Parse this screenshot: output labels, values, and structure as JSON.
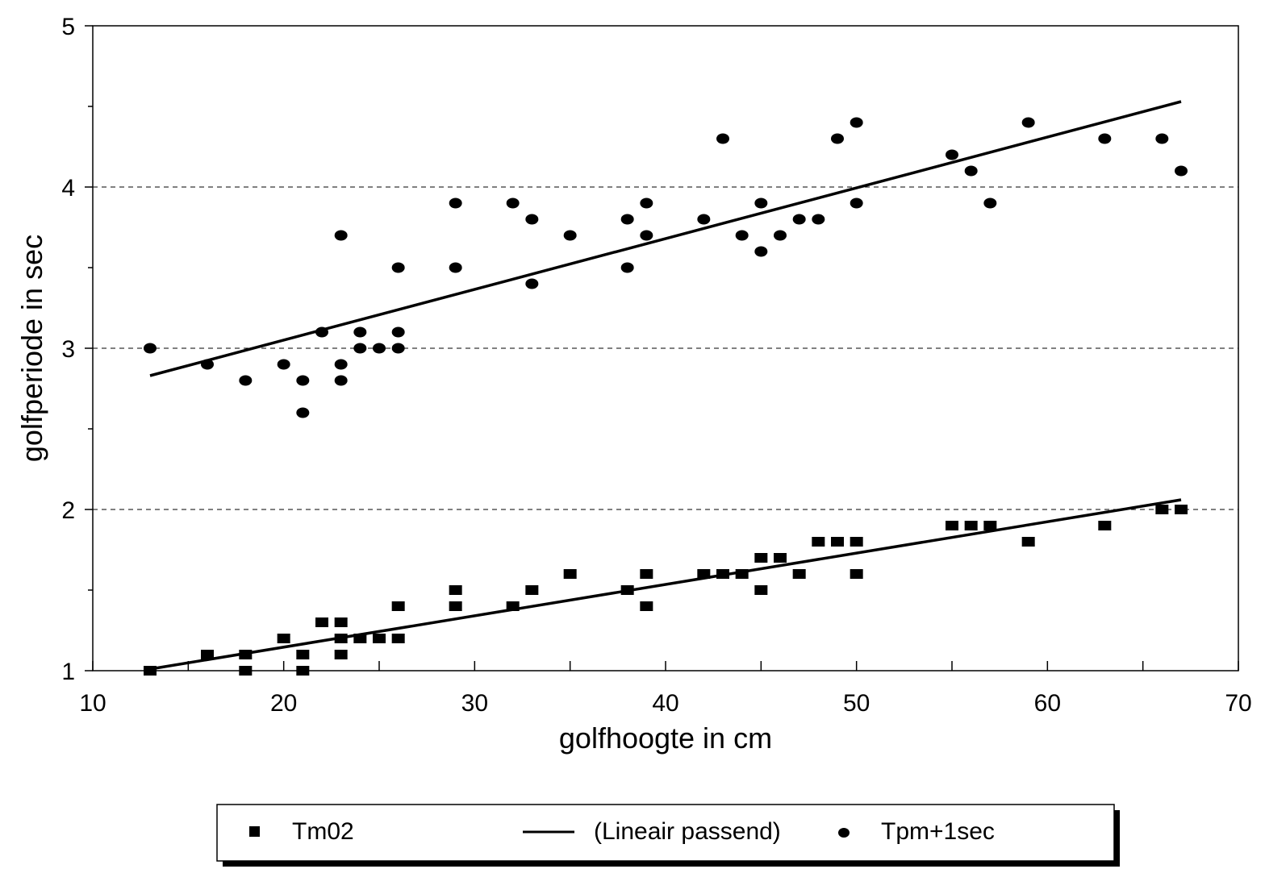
{
  "chart_data": {
    "type": "scatter",
    "title": "",
    "xlabel": "golfhoogte in cm",
    "ylabel": "golfperiode in sec",
    "xlim": [
      10,
      70
    ],
    "ylim": [
      1,
      5
    ],
    "x_ticks": [
      10,
      20,
      30,
      40,
      50,
      60,
      70
    ],
    "y_ticks": [
      1,
      2,
      3,
      4,
      5
    ],
    "grid": "horizontal dashed",
    "legend_position": "bottom",
    "series": [
      {
        "name": "Tm02",
        "marker": "square",
        "color": "#000000",
        "points": [
          [
            13,
            1.0
          ],
          [
            16,
            1.1
          ],
          [
            18,
            1.1
          ],
          [
            18,
            1.0
          ],
          [
            20,
            1.2
          ],
          [
            21,
            1.1
          ],
          [
            21,
            1.0
          ],
          [
            22,
            1.3
          ],
          [
            23,
            1.3
          ],
          [
            23,
            1.2
          ],
          [
            23,
            1.1
          ],
          [
            24,
            1.2
          ],
          [
            25,
            1.2
          ],
          [
            26,
            1.4
          ],
          [
            26,
            1.2
          ],
          [
            29,
            1.5
          ],
          [
            29,
            1.4
          ],
          [
            32,
            1.4
          ],
          [
            33,
            1.5
          ],
          [
            35,
            1.6
          ],
          [
            38,
            1.5
          ],
          [
            39,
            1.6
          ],
          [
            39,
            1.4
          ],
          [
            42,
            1.6
          ],
          [
            43,
            1.6
          ],
          [
            44,
            1.6
          ],
          [
            45,
            1.7
          ],
          [
            45,
            1.5
          ],
          [
            46,
            1.7
          ],
          [
            47,
            1.6
          ],
          [
            48,
            1.8
          ],
          [
            49,
            1.8
          ],
          [
            50,
            1.8
          ],
          [
            50,
            1.6
          ],
          [
            55,
            1.9
          ],
          [
            56,
            1.9
          ],
          [
            57,
            1.9
          ],
          [
            59,
            1.8
          ],
          [
            63,
            1.9
          ],
          [
            66,
            2.0
          ],
          [
            67,
            2.0
          ]
        ]
      },
      {
        "name": "Tpm+1sec",
        "marker": "circle",
        "color": "#000000",
        "points": [
          [
            13,
            3.0
          ],
          [
            16,
            2.9
          ],
          [
            18,
            2.8
          ],
          [
            20,
            2.9
          ],
          [
            21,
            2.8
          ],
          [
            21,
            2.6
          ],
          [
            22,
            3.1
          ],
          [
            23,
            3.7
          ],
          [
            23,
            2.9
          ],
          [
            23,
            2.8
          ],
          [
            24,
            3.1
          ],
          [
            24,
            3.0
          ],
          [
            25,
            3.0
          ],
          [
            26,
            3.5
          ],
          [
            26,
            3.1
          ],
          [
            26,
            3.0
          ],
          [
            29,
            3.9
          ],
          [
            29,
            3.5
          ],
          [
            32,
            3.9
          ],
          [
            33,
            3.8
          ],
          [
            33,
            3.4
          ],
          [
            35,
            3.7
          ],
          [
            38,
            3.8
          ],
          [
            38,
            3.5
          ],
          [
            39,
            3.9
          ],
          [
            39,
            3.7
          ],
          [
            42,
            3.8
          ],
          [
            43,
            4.3
          ],
          [
            44,
            3.7
          ],
          [
            45,
            3.9
          ],
          [
            45,
            3.6
          ],
          [
            46,
            3.7
          ],
          [
            47,
            3.8
          ],
          [
            48,
            3.8
          ],
          [
            49,
            4.3
          ],
          [
            50,
            4.4
          ],
          [
            50,
            3.9
          ],
          [
            55,
            4.2
          ],
          [
            56,
            4.1
          ],
          [
            57,
            3.9
          ],
          [
            59,
            4.4
          ],
          [
            63,
            4.3
          ],
          [
            66,
            4.3
          ],
          [
            67,
            4.1
          ]
        ]
      }
    ],
    "trendlines": [
      {
        "name": "(Lineair passend)",
        "fit_of": "Tm02",
        "x": [
          13,
          67
        ],
        "y": [
          1.01,
          2.06
        ]
      },
      {
        "name": "(Lineair passend)",
        "fit_of": "Tpm+1sec",
        "x": [
          13,
          67
        ],
        "y": [
          2.83,
          4.53
        ]
      }
    ],
    "legend": [
      {
        "label": "Tm02",
        "symbol": "square"
      },
      {
        "label": "(Lineair passend)",
        "symbol": "line"
      },
      {
        "label": "Tpm+1sec",
        "symbol": "circle"
      }
    ]
  }
}
